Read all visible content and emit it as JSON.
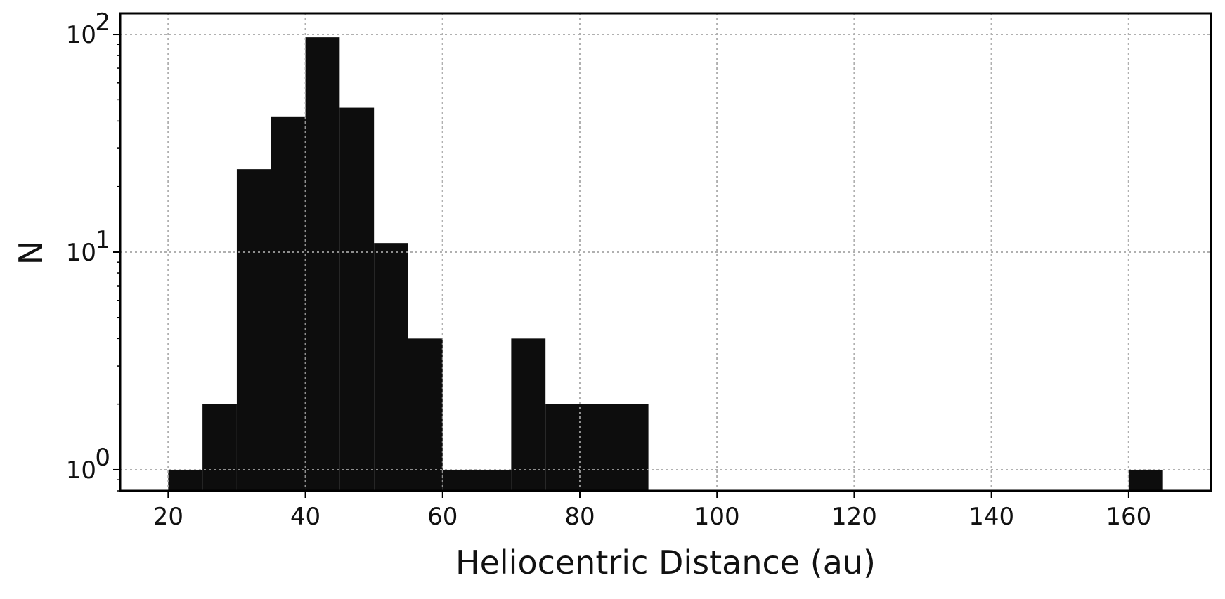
{
  "chart_data": {
    "type": "bar",
    "histogram": true,
    "xlabel": "Heliocentric Distance (au)",
    "ylabel": "N",
    "xlim": [
      13,
      172
    ],
    "ylim": [
      0.8,
      125
    ],
    "yscale": "log",
    "grid": true,
    "bar_color": "#0d0d0d",
    "xticks": [
      "20",
      "40",
      "60",
      "80",
      "100",
      "120",
      "140",
      "160"
    ],
    "yticks": [
      {
        "value": 1,
        "base": "10",
        "exp": "0"
      },
      {
        "value": 10,
        "base": "10",
        "exp": "1"
      },
      {
        "value": 100,
        "base": "10",
        "exp": "2"
      }
    ],
    "bins": [
      {
        "start": 20,
        "end": 25,
        "count": 1
      },
      {
        "start": 25,
        "end": 30,
        "count": 2
      },
      {
        "start": 30,
        "end": 35,
        "count": 24
      },
      {
        "start": 35,
        "end": 40,
        "count": 42
      },
      {
        "start": 40,
        "end": 45,
        "count": 97
      },
      {
        "start": 45,
        "end": 50,
        "count": 46
      },
      {
        "start": 50,
        "end": 55,
        "count": 11
      },
      {
        "start": 55,
        "end": 60,
        "count": 4
      },
      {
        "start": 60,
        "end": 65,
        "count": 1
      },
      {
        "start": 65,
        "end": 70,
        "count": 1
      },
      {
        "start": 70,
        "end": 75,
        "count": 4
      },
      {
        "start": 75,
        "end": 80,
        "count": 2
      },
      {
        "start": 80,
        "end": 85,
        "count": 2
      },
      {
        "start": 85,
        "end": 90,
        "count": 2
      },
      {
        "start": 160,
        "end": 165,
        "count": 1
      }
    ]
  }
}
